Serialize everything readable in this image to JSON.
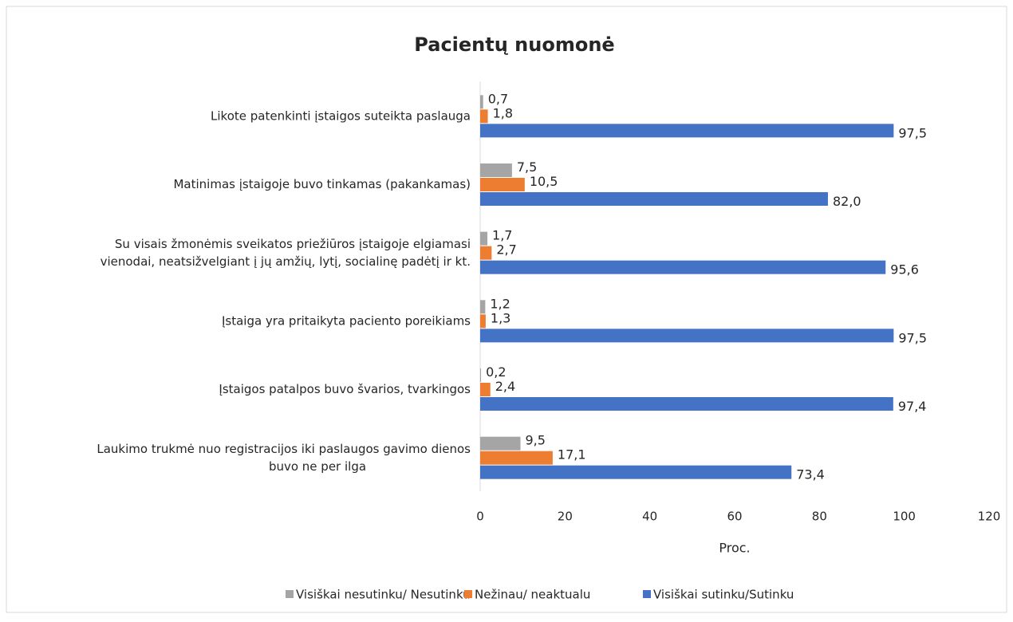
{
  "chart_data": {
    "type": "hbar",
    "title": "Pacientų nuomonė",
    "xlabel": "Proc.",
    "categories": [
      "Likote patenkinti įstaigos suteikta paslauga",
      "Matinimas įstaigoje buvo tinkamas  (pakankamas)",
      "Su visais žmonėmis sveikatos priežiūros įstaigoje elgiamasi\nvienodai, neatsižvelgiant į jų amžių, lytį, socialinę padėtį ir kt.",
      "Įstaiga yra pritaikyta paciento poreikiams",
      "Įstaigos patalpos buvo švarios, tvarkingos",
      "Laukimo trukmė nuo registracijos iki paslaugos gavimo dienos\nbuvo ne per ilga"
    ],
    "series": [
      {
        "name": "Visiškai nesutinku/ Nesutinku",
        "color": "#a5a5a5",
        "label_color": "#000000",
        "values": [
          0.7,
          7.5,
          1.7,
          1.2,
          0.2,
          9.5
        ],
        "value_labels": [
          "0,7",
          "7,5",
          "1,7",
          "1,2",
          "0,2",
          "9,5"
        ]
      },
      {
        "name": "Nežinau/ neaktualu",
        "color": "#ed7d31",
        "label_color": "#7f7f7f",
        "values": [
          1.8,
          10.5,
          2.7,
          1.3,
          2.4,
          17.1
        ],
        "value_labels": [
          "1,8",
          "10,5",
          "2,7",
          "1,3",
          "2,4",
          "17,1"
        ]
      },
      {
        "name": "Visiškai sutinku/Sutinku",
        "color": "#4472c4",
        "label_color": "#000000",
        "values": [
          97.5,
          82.0,
          95.6,
          97.5,
          97.4,
          73.4
        ],
        "value_labels": [
          "97,5",
          "82,0",
          "95,6",
          "97,5",
          "97,4",
          "73,4"
        ]
      }
    ],
    "xlim": [
      0,
      120
    ],
    "xticks": [
      0,
      20,
      40,
      60,
      80,
      100,
      120
    ],
    "grid": false,
    "legend": "bottom"
  }
}
